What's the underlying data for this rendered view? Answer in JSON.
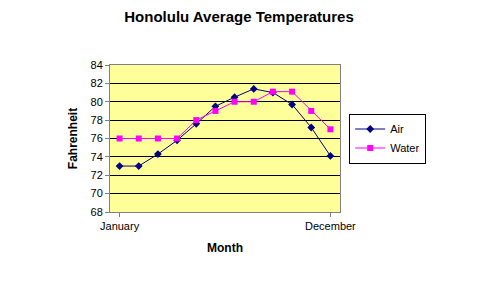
{
  "chart_data": {
    "type": "line",
    "title": "Honolulu Average Temperatures",
    "x_label": "Month",
    "y_label": "Fahrenheit",
    "categories": [
      "January",
      null,
      null,
      null,
      null,
      null,
      null,
      null,
      null,
      null,
      null,
      "December"
    ],
    "series": [
      {
        "name": "Air",
        "color": "#000080",
        "marker": "diamond",
        "values": [
          73,
          73,
          74.3,
          75.8,
          77.6,
          79.5,
          80.5,
          81.4,
          81,
          79.7,
          77.2,
          74.1
        ]
      },
      {
        "name": "Water",
        "color": "#ff00ff",
        "marker": "square",
        "values": [
          76,
          76,
          76,
          76,
          78,
          79,
          80,
          80,
          81.1,
          81.1,
          79,
          77
        ]
      }
    ],
    "ylim": [
      68,
      84
    ],
    "yticks": [
      68,
      70,
      72,
      74,
      76,
      78,
      80,
      82,
      84
    ],
    "grid": true,
    "legend": "right"
  }
}
